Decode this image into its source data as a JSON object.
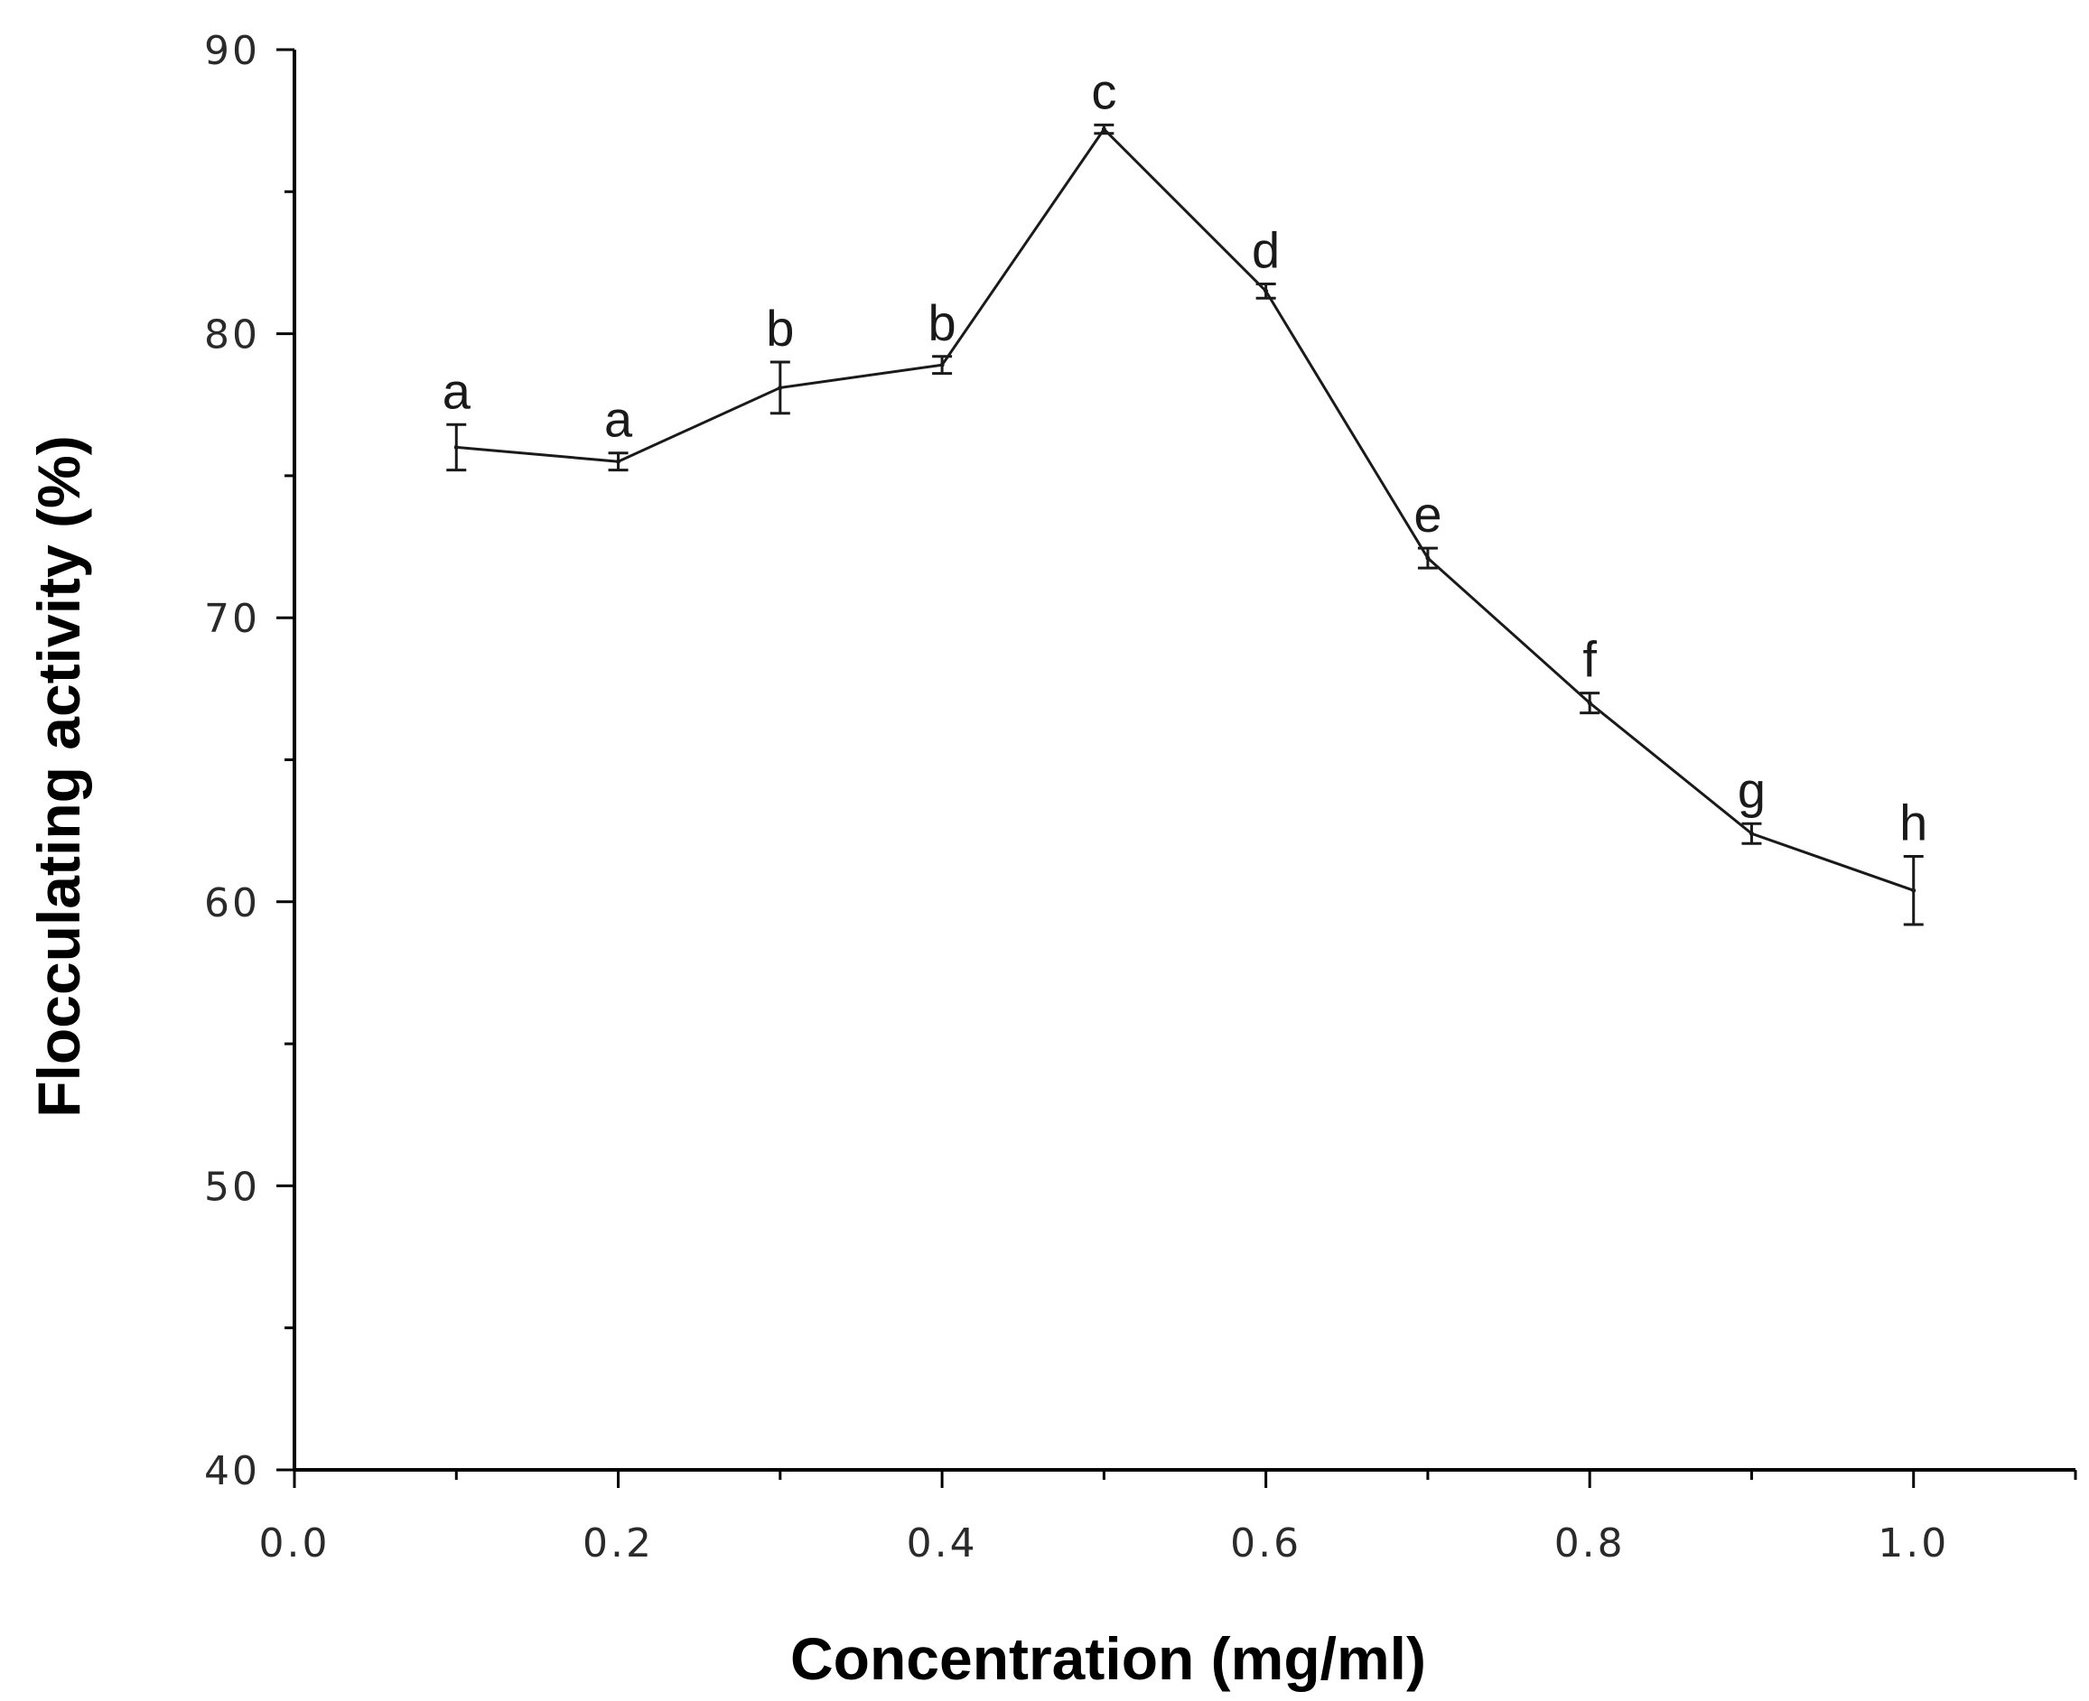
{
  "chart_data": {
    "type": "line",
    "title": "",
    "xlabel": "Concentration (mg/ml)",
    "ylabel": "Flocculating activity (%)",
    "xlim": [
      0.0,
      1.1
    ],
    "ylim": [
      40,
      90
    ],
    "x_ticks": [
      0.0,
      0.2,
      0.4,
      0.6,
      0.8,
      1.0
    ],
    "x_tick_labels": [
      "0.0",
      "0.2",
      "0.4",
      "0.6",
      "0.8",
      "1.0"
    ],
    "y_ticks": [
      40,
      50,
      60,
      70,
      80,
      90
    ],
    "y_tick_labels": [
      "40",
      "50",
      "60",
      "70",
      "80",
      "90"
    ],
    "grid": false,
    "series": [
      {
        "name": "Flocculating activity",
        "x": [
          0.1,
          0.2,
          0.3,
          0.4,
          0.5,
          0.6,
          0.7,
          0.8,
          0.9,
          1.0
        ],
        "y": [
          76.0,
          75.5,
          78.1,
          78.9,
          87.2,
          81.5,
          72.1,
          67.0,
          62.4,
          60.4
        ],
        "error": [
          0.8,
          0.3,
          0.9,
          0.3,
          0.15,
          0.25,
          0.35,
          0.35,
          0.35,
          1.2
        ],
        "labels": [
          "a",
          "a",
          "b",
          "b",
          "c",
          "d",
          "e",
          "f",
          "g",
          "h"
        ]
      }
    ]
  }
}
